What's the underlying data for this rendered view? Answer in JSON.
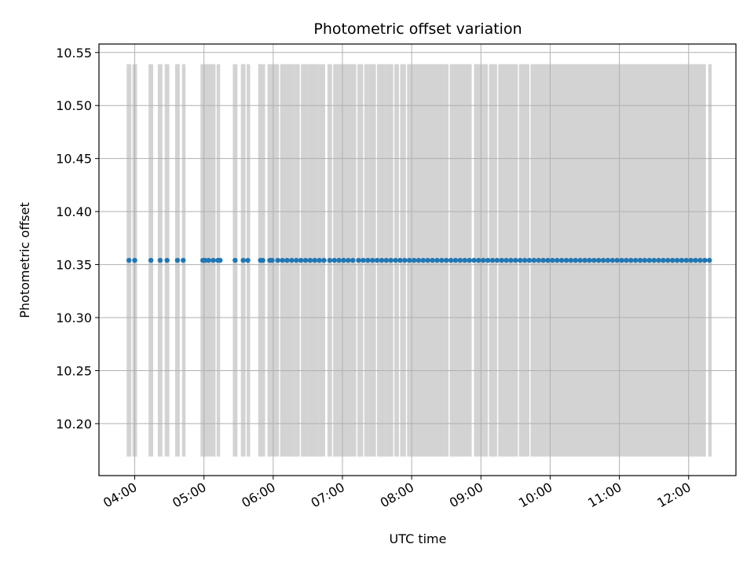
{
  "chart_data": {
    "type": "scatter",
    "title": "Photometric offset variation",
    "xlabel": "UTC time",
    "ylabel": "Photometric offset",
    "x_ticks": [
      "04:00",
      "05:00",
      "06:00",
      "07:00",
      "08:00",
      "09:00",
      "10:00",
      "11:00",
      "12:00"
    ],
    "y_ticks": [
      "10.20",
      "10.25",
      "10.30",
      "10.35",
      "10.40",
      "10.45",
      "10.50",
      "10.55"
    ],
    "xlim": [
      "03:29",
      "12:41"
    ],
    "ylim": [
      10.151,
      10.558
    ],
    "grid": true,
    "colors": {
      "points": "#1f77b4",
      "bands": "#d3d3d3",
      "grid": "#b0b0b0"
    },
    "band_y_range": [
      10.169,
      10.539
    ],
    "series": [
      {
        "y_value": 10.354,
        "x": [
          "03:55",
          "04:00",
          "04:14",
          "04:22",
          "04:28",
          "04:37",
          "04:42",
          "04:59",
          "05:01",
          "05:04",
          "05:08",
          "05:12",
          "05:14",
          "05:27",
          "05:34",
          "05:38",
          "05:49",
          "05:51",
          "05:57",
          "05:59",
          "06:04",
          "06:08",
          "06:12",
          "06:16",
          "06:20",
          "06:24",
          "06:28",
          "06:32",
          "06:36",
          "06:40",
          "06:44",
          "06:49",
          "06:53",
          "06:57",
          "07:01",
          "07:05",
          "07:09",
          "07:14",
          "07:18",
          "07:22",
          "07:26",
          "07:30",
          "07:34",
          "07:38",
          "07:42",
          "07:46",
          "07:50",
          "07:54",
          "07:58",
          "08:02",
          "08:06",
          "08:10",
          "08:14",
          "08:18",
          "08:22",
          "08:26",
          "08:30",
          "08:34",
          "08:38",
          "08:42",
          "08:46",
          "08:50",
          "08:54",
          "08:58",
          "09:02",
          "09:06",
          "09:10",
          "09:14",
          "09:18",
          "09:22",
          "09:26",
          "09:30",
          "09:34",
          "09:38",
          "09:42",
          "09:46",
          "09:50",
          "09:54",
          "09:58",
          "10:02",
          "10:06",
          "10:10",
          "10:14",
          "10:18",
          "10:22",
          "10:26",
          "10:30",
          "10:34",
          "10:38",
          "10:42",
          "10:46",
          "10:50",
          "10:54",
          "10:58",
          "11:02",
          "11:06",
          "11:10",
          "11:14",
          "11:18",
          "11:22",
          "11:26",
          "11:30",
          "11:34",
          "11:38",
          "11:42",
          "11:46",
          "11:50",
          "11:54",
          "11:58",
          "12:02",
          "12:06",
          "12:10",
          "12:14",
          "12:18"
        ]
      }
    ],
    "bands": [
      [
        "03:53",
        "03:57"
      ],
      [
        "03:58",
        "04:02"
      ],
      [
        "04:12",
        "04:16"
      ],
      [
        "04:20",
        "04:24"
      ],
      [
        "04:26",
        "04:30"
      ],
      [
        "04:35",
        "04:39"
      ],
      [
        "04:41",
        "04:44"
      ],
      [
        "04:57",
        "05:00"
      ],
      [
        "05:00",
        "05:10"
      ],
      [
        "05:11",
        "05:14"
      ],
      [
        "05:25",
        "05:29"
      ],
      [
        "05:32",
        "05:36"
      ],
      [
        "05:37",
        "05:40"
      ],
      [
        "05:47",
        "05:53"
      ],
      [
        "05:55",
        "06:05"
      ],
      [
        "06:06",
        "06:11"
      ],
      [
        "06:11",
        "06:18"
      ],
      [
        "06:18",
        "06:23"
      ],
      [
        "06:24",
        "06:31"
      ],
      [
        "06:31",
        "06:39"
      ],
      [
        "06:39",
        "06:45"
      ],
      [
        "06:47",
        "06:51"
      ],
      [
        "06:52",
        "07:12"
      ],
      [
        "07:13",
        "07:18"
      ],
      [
        "07:19",
        "07:22"
      ],
      [
        "07:22",
        "07:29"
      ],
      [
        "07:30",
        "07:37"
      ],
      [
        "07:37",
        "07:44"
      ],
      [
        "07:45",
        "07:49"
      ],
      [
        "07:50",
        "07:55"
      ],
      [
        "07:56",
        "08:32"
      ],
      [
        "08:33",
        "08:52"
      ],
      [
        "08:54",
        "09:06"
      ],
      [
        "09:07",
        "09:14"
      ],
      [
        "09:15",
        "09:32"
      ],
      [
        "09:33",
        "09:42"
      ],
      [
        "09:43",
        "12:15"
      ],
      [
        "12:17",
        "12:20"
      ]
    ]
  }
}
